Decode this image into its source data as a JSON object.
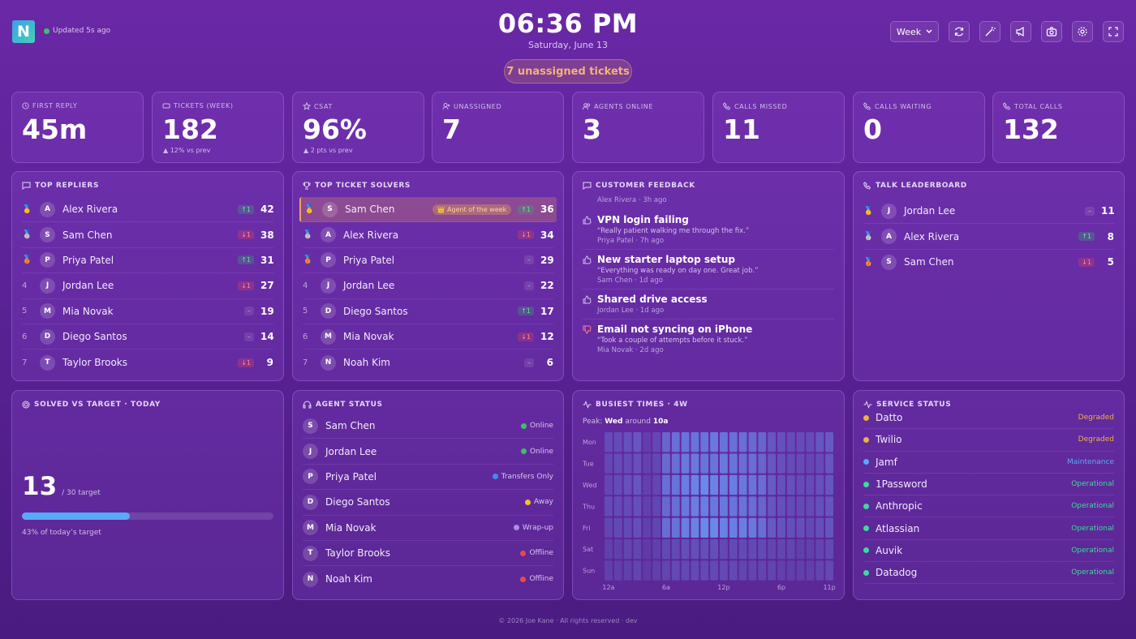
{
  "header": {
    "logo_letter": "N",
    "updated": "Updated 5s ago",
    "time": "06:36 PM",
    "date": "Saturday, June 13",
    "banner": "7 unassigned tickets",
    "range_select": "Week"
  },
  "kpis": [
    {
      "label": "FIRST REPLY",
      "value": "45m",
      "sub": ""
    },
    {
      "label": "TICKETS (WEEK)",
      "value": "182",
      "sub": "▲ 12% vs prev"
    },
    {
      "label": "CSAT",
      "value": "96%",
      "sub": "▲ 2 pts vs prev"
    },
    {
      "label": "UNASSIGNED",
      "value": "7",
      "sub": ""
    },
    {
      "label": "AGENTS ONLINE",
      "value": "3",
      "sub": ""
    },
    {
      "label": "CALLS MISSED",
      "value": "11",
      "sub": ""
    },
    {
      "label": "CALLS WAITING",
      "value": "0",
      "sub": ""
    },
    {
      "label": "TOTAL CALLS",
      "value": "132",
      "sub": ""
    }
  ],
  "top_repliers": {
    "title": "TOP REPLIERS",
    "rows": [
      {
        "rank": "🥇",
        "initial": "A",
        "name": "Alex Rivera",
        "move": "↑1",
        "dir": "up",
        "value": "42"
      },
      {
        "rank": "🥈",
        "initial": "S",
        "name": "Sam Chen",
        "move": "↓1",
        "dir": "dn",
        "value": "38"
      },
      {
        "rank": "🥉",
        "initial": "P",
        "name": "Priya Patel",
        "move": "↑1",
        "dir": "up",
        "value": "31"
      },
      {
        "rank": "4",
        "initial": "J",
        "name": "Jordan Lee",
        "move": "↓1",
        "dir": "dn",
        "value": "27"
      },
      {
        "rank": "5",
        "initial": "M",
        "name": "Mia Novak",
        "move": "–",
        "dir": "eq",
        "value": "19"
      },
      {
        "rank": "6",
        "initial": "D",
        "name": "Diego Santos",
        "move": "–",
        "dir": "eq",
        "value": "14"
      },
      {
        "rank": "7",
        "initial": "T",
        "name": "Taylor Brooks",
        "move": "↓1",
        "dir": "dn",
        "value": "9"
      }
    ]
  },
  "top_solvers": {
    "title": "TOP TICKET SOLVERS",
    "badge": "👑 Agent of the week",
    "rows": [
      {
        "rank": "🥇",
        "initial": "S",
        "name": "Sam Chen",
        "move": "↑1",
        "dir": "up",
        "value": "36"
      },
      {
        "rank": "🥈",
        "initial": "A",
        "name": "Alex Rivera",
        "move": "↓1",
        "dir": "dn",
        "value": "34"
      },
      {
        "rank": "🥉",
        "initial": "P",
        "name": "Priya Patel",
        "move": "–",
        "dir": "eq",
        "value": "29"
      },
      {
        "rank": "4",
        "initial": "J",
        "name": "Jordan Lee",
        "move": "–",
        "dir": "eq",
        "value": "22"
      },
      {
        "rank": "5",
        "initial": "D",
        "name": "Diego Santos",
        "move": "↑1",
        "dir": "up",
        "value": "17"
      },
      {
        "rank": "6",
        "initial": "M",
        "name": "Mia Novak",
        "move": "↓1",
        "dir": "dn",
        "value": "12"
      },
      {
        "rank": "7",
        "initial": "N",
        "name": "Noah Kim",
        "move": "–",
        "dir": "eq",
        "value": "6"
      }
    ]
  },
  "feedback": {
    "title": "CUSTOMER FEEDBACK",
    "partial_meta": "Alex Rivera · 3h ago",
    "items": [
      {
        "title": "VPN login failing",
        "quote": "“Really patient walking me through the fix.”",
        "meta": "Priya Patel · 7h ago",
        "sentiment": "positive"
      },
      {
        "title": "New starter laptop setup",
        "quote": "“Everything was ready on day one. Great job.”",
        "meta": "Sam Chen · 1d ago",
        "sentiment": "positive"
      },
      {
        "title": "Shared drive access",
        "quote": "",
        "meta": "Jordan Lee · 1d ago",
        "sentiment": "positive"
      },
      {
        "title": "Email not syncing on iPhone",
        "quote": "“Took a couple of attempts before it stuck.”",
        "meta": "Mia Novak · 2d ago",
        "sentiment": "negative"
      }
    ]
  },
  "talk": {
    "title": "TALK LEADERBOARD",
    "rows": [
      {
        "rank": "🥇",
        "initial": "J",
        "name": "Jordan Lee",
        "move": "–",
        "dir": "eq",
        "value": "11"
      },
      {
        "rank": "🥈",
        "initial": "A",
        "name": "Alex Rivera",
        "move": "↑1",
        "dir": "up",
        "value": "8"
      },
      {
        "rank": "🥉",
        "initial": "S",
        "name": "Sam Chen",
        "move": "↓1",
        "dir": "dn",
        "value": "5"
      }
    ]
  },
  "solved": {
    "title": "SOLVED VS TARGET · TODAY",
    "value": "13",
    "target": "/ 30 target",
    "progress": 0.43,
    "caption": "43% of today’s target"
  },
  "agent_status": {
    "title": "AGENT STATUS",
    "rows": [
      {
        "initial": "S",
        "name": "Sam Chen",
        "status": "Online",
        "color": "#3ec06a"
      },
      {
        "initial": "J",
        "name": "Jordan Lee",
        "status": "Online",
        "color": "#3ec06a"
      },
      {
        "initial": "P",
        "name": "Priya Patel",
        "status": "Transfers Only",
        "color": "#3a8ef0"
      },
      {
        "initial": "D",
        "name": "Diego Santos",
        "status": "Away",
        "color": "#f0c030"
      },
      {
        "initial": "M",
        "name": "Mia Novak",
        "status": "Wrap-up",
        "color": "#b08ae8"
      },
      {
        "initial": "T",
        "name": "Taylor Brooks",
        "status": "Offline",
        "color": "#e84a4a"
      },
      {
        "initial": "N",
        "name": "Noah Kim",
        "status": "Offline",
        "color": "#e84a4a"
      }
    ]
  },
  "busiest": {
    "title": "BUSIEST TIMES · 4W",
    "peak_label": "Peak:",
    "peak_day": "Wed",
    "peak_mid": "around",
    "peak_hour": "10a",
    "days": [
      "Mon",
      "Tue",
      "Wed",
      "Thu",
      "Fri",
      "Sat",
      "Sun"
    ],
    "hour_ticks": [
      "12a",
      "6a",
      "12p",
      "6p",
      "11p"
    ],
    "levels": [
      [
        0.2,
        0.2,
        0.25,
        0.3,
        0.05,
        0.15,
        0.45,
        0.55,
        0.6,
        0.6,
        0.6,
        0.65,
        0.6,
        0.55,
        0.55,
        0.5,
        0.45,
        0.3,
        0.25,
        0.2,
        0.2,
        0.2,
        0.3,
        0.35
      ],
      [
        0.15,
        0.2,
        0.2,
        0.25,
        0.1,
        0.15,
        0.5,
        0.55,
        0.65,
        0.65,
        0.6,
        0.6,
        0.65,
        0.6,
        0.55,
        0.55,
        0.45,
        0.3,
        0.25,
        0.2,
        0.2,
        0.15,
        0.2,
        0.3
      ],
      [
        0.15,
        0.2,
        0.25,
        0.3,
        0.1,
        0.15,
        0.55,
        0.6,
        0.7,
        0.75,
        0.8,
        0.75,
        0.7,
        0.7,
        0.65,
        0.6,
        0.55,
        0.35,
        0.25,
        0.25,
        0.2,
        0.2,
        0.25,
        0.3
      ],
      [
        0.2,
        0.2,
        0.2,
        0.25,
        0.1,
        0.15,
        0.5,
        0.55,
        0.65,
        0.7,
        0.7,
        0.65,
        0.65,
        0.6,
        0.6,
        0.55,
        0.45,
        0.3,
        0.25,
        0.2,
        0.2,
        0.2,
        0.25,
        0.3
      ],
      [
        0.15,
        0.2,
        0.2,
        0.25,
        0.1,
        0.15,
        0.55,
        0.6,
        0.7,
        0.75,
        0.8,
        0.8,
        0.75,
        0.7,
        0.7,
        0.65,
        0.55,
        0.35,
        0.3,
        0.25,
        0.25,
        0.2,
        0.25,
        0.3
      ],
      [
        0.1,
        0.1,
        0.15,
        0.15,
        0.05,
        0.1,
        0.2,
        0.2,
        0.25,
        0.25,
        0.25,
        0.25,
        0.2,
        0.2,
        0.2,
        0.2,
        0.2,
        0.15,
        0.15,
        0.15,
        0.1,
        0.1,
        0.15,
        0.2
      ],
      [
        0.1,
        0.1,
        0.1,
        0.15,
        0.05,
        0.1,
        0.15,
        0.2,
        0.2,
        0.2,
        0.2,
        0.2,
        0.2,
        0.2,
        0.15,
        0.15,
        0.15,
        0.15,
        0.1,
        0.1,
        0.1,
        0.1,
        0.15,
        0.2
      ]
    ]
  },
  "services": {
    "title": "SERVICE STATUS",
    "rows": [
      {
        "name": "Datto",
        "status": "Degraded",
        "color": "#f0b040"
      },
      {
        "name": "Twilio",
        "status": "Degraded",
        "color": "#f0b040"
      },
      {
        "name": "Jamf",
        "status": "Maintenance",
        "color": "#5aa8f8"
      },
      {
        "name": "1Password",
        "status": "Operational",
        "color": "#3ed8a0"
      },
      {
        "name": "Anthropic",
        "status": "Operational",
        "color": "#3ed8a0"
      },
      {
        "name": "Atlassian",
        "status": "Operational",
        "color": "#3ed8a0"
      },
      {
        "name": "Auvik",
        "status": "Operational",
        "color": "#3ed8a0"
      },
      {
        "name": "Datadog",
        "status": "Operational",
        "color": "#3ed8a0"
      }
    ]
  },
  "footer": "© 2026 Joe Kane · All rights reserved · dev"
}
